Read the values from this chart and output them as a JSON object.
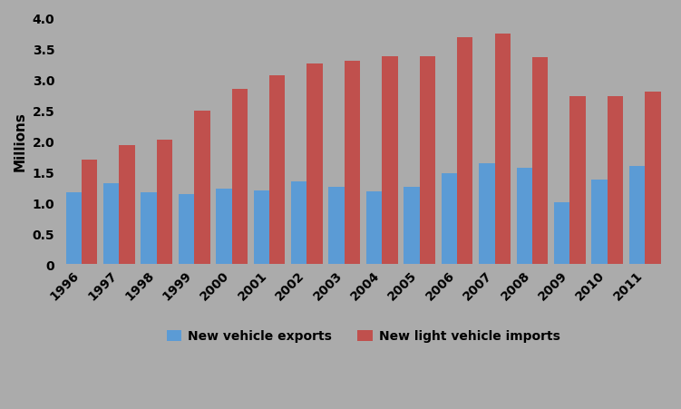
{
  "years": [
    1996,
    1997,
    1998,
    1999,
    2000,
    2001,
    2002,
    2003,
    2004,
    2005,
    2006,
    2007,
    2008,
    2009,
    2010,
    2011
  ],
  "exports": [
    1.17,
    1.32,
    1.17,
    1.13,
    1.22,
    1.2,
    1.34,
    1.25,
    1.18,
    1.25,
    1.47,
    1.63,
    1.57,
    1.0,
    1.37,
    1.6
  ],
  "imports": [
    1.7,
    1.93,
    2.02,
    2.49,
    2.85,
    3.07,
    3.26,
    3.3,
    3.38,
    3.38,
    3.68,
    3.74,
    3.36,
    2.72,
    2.72,
    2.8
  ],
  "export_color": "#5b9bd5",
  "import_color": "#c0504d",
  "background_color": "#ababab",
  "ylabel": "Millions",
  "ylim": [
    0,
    4.0
  ],
  "yticks": [
    0,
    0.5,
    1.0,
    1.5,
    2.0,
    2.5,
    3.0,
    3.5,
    4.0
  ],
  "legend_labels": [
    "New vehicle exports",
    "New light vehicle imports"
  ],
  "bar_width": 0.42
}
